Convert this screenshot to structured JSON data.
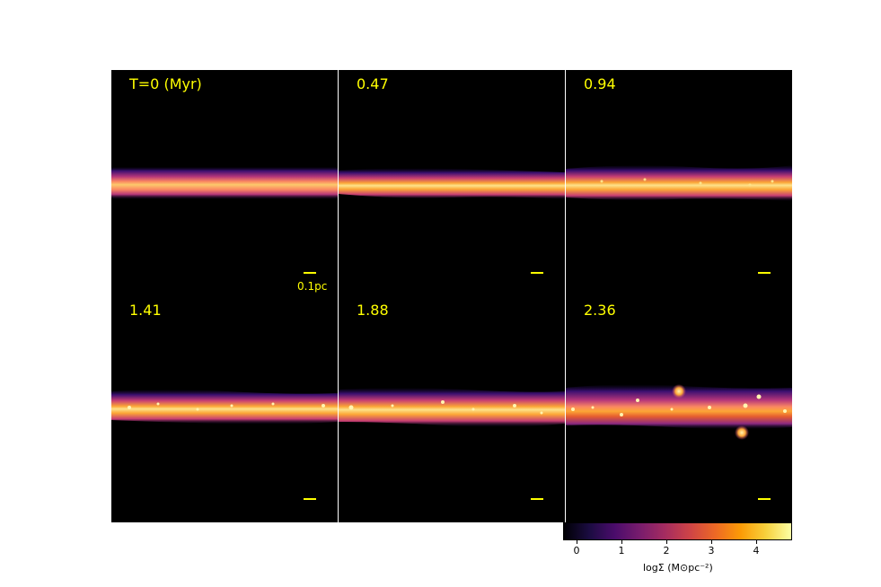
{
  "panels": [
    {
      "label": "T=0 (Myr)",
      "scale_label": "0.1pc"
    },
    {
      "label": "0.47"
    },
    {
      "label": "0.94"
    },
    {
      "label": "1.41"
    },
    {
      "label": "1.88"
    },
    {
      "label": "2.36"
    }
  ],
  "colorbar": {
    "ticks": [
      "0",
      "1",
      "2",
      "3",
      "4"
    ],
    "label": "logΣ (M⊙pc⁻²)",
    "colormap": "inferno",
    "range": [
      -0.3,
      4.8
    ]
  },
  "colors": {
    "annotation": "#ffff00",
    "background": "#000000"
  }
}
